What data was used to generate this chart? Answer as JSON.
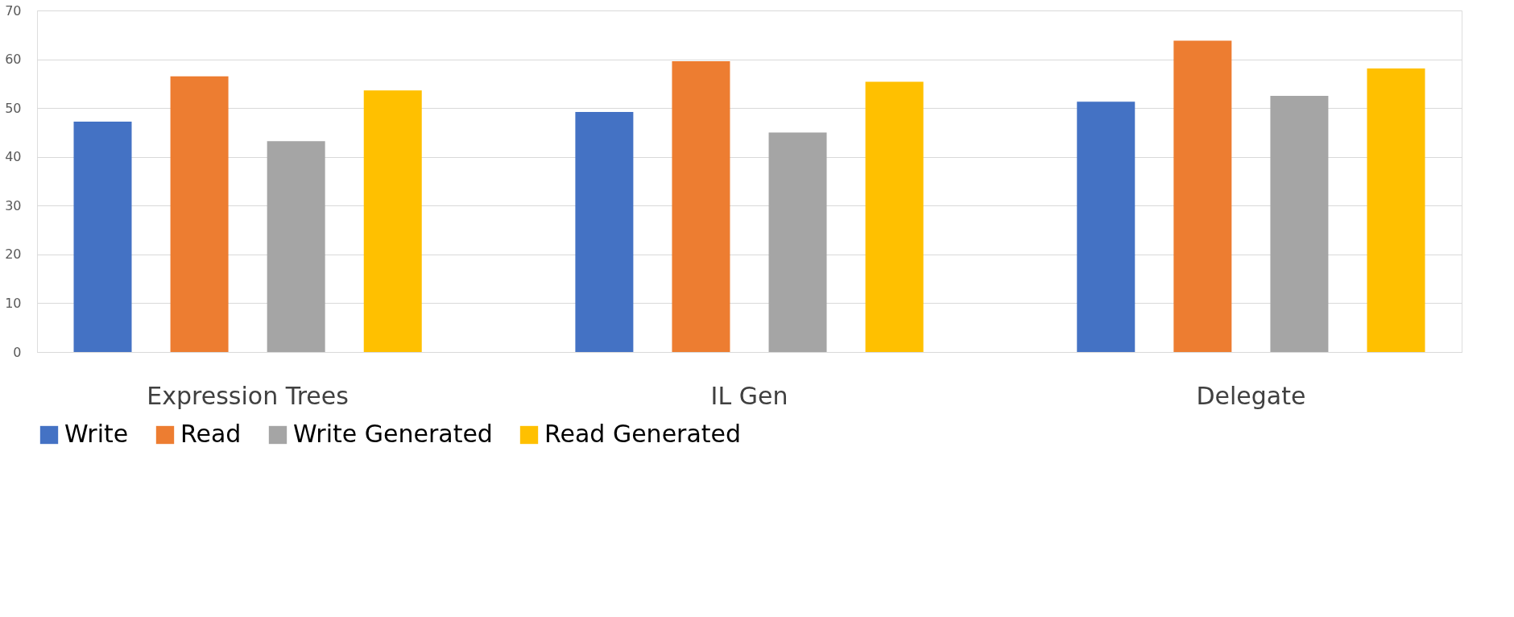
{
  "chart_data": {
    "type": "bar",
    "categories": [
      "Expression Trees",
      "IL Gen",
      "Delegate"
    ],
    "series": [
      {
        "name": "Write",
        "color": "#4472c4",
        "values": [
          47.2,
          49.2,
          51.3
        ]
      },
      {
        "name": "Read",
        "color": "#ed7d31",
        "values": [
          56.5,
          59.6,
          63.8
        ]
      },
      {
        "name": "Write Generated",
        "color": "#a5a5a5",
        "values": [
          43.2,
          45.0,
          52.5
        ]
      },
      {
        "name": "Read Generated",
        "color": "#ffc000",
        "values": [
          53.6,
          55.4,
          58.1
        ]
      }
    ],
    "ylim": [
      0,
      70
    ],
    "yticks": [
      0,
      10,
      20,
      30,
      40,
      50,
      60,
      70
    ],
    "grid": "y",
    "legend": "bottom"
  }
}
